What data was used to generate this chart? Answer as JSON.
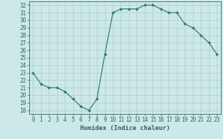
{
  "x": [
    0,
    1,
    2,
    3,
    4,
    5,
    6,
    7,
    8,
    9,
    10,
    11,
    12,
    13,
    14,
    15,
    16,
    17,
    18,
    19,
    20,
    21,
    22,
    23
  ],
  "y": [
    23,
    21.5,
    21,
    21,
    20.5,
    19.5,
    18.5,
    18,
    19.5,
    25.5,
    31,
    31.5,
    31.5,
    31.5,
    32,
    32,
    31.5,
    31,
    31,
    29.5,
    29,
    28,
    27,
    25.5
  ],
  "line_color": "#2e7d6e",
  "marker": "D",
  "marker_size": 2.0,
  "bg_color": "#cce8e8",
  "grid_color": "#aacccc",
  "xlabel": "Humidex (Indice chaleur)",
  "xlim": [
    -0.5,
    23.5
  ],
  "ylim": [
    17.5,
    32.5
  ],
  "yticks": [
    18,
    19,
    20,
    21,
    22,
    23,
    24,
    25,
    26,
    27,
    28,
    29,
    30,
    31,
    32
  ],
  "xticks": [
    0,
    1,
    2,
    3,
    4,
    5,
    6,
    7,
    8,
    9,
    10,
    11,
    12,
    13,
    14,
    15,
    16,
    17,
    18,
    19,
    20,
    21,
    22,
    23
  ],
  "tick_color": "#2e6060",
  "tick_fontsize": 5.5,
  "label_fontsize": 6.5,
  "linewidth": 0.9
}
